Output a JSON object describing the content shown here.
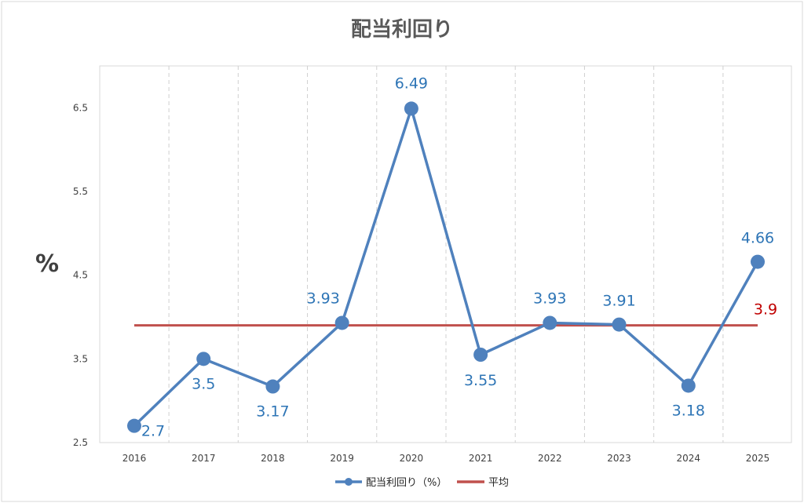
{
  "chart_data": {
    "type": "line",
    "title": "配当利回り",
    "ylabel": "%",
    "xlabel": "",
    "categories": [
      "2016",
      "2017",
      "2018",
      "2019",
      "2020",
      "2021",
      "2022",
      "2023",
      "2024",
      "2025"
    ],
    "yticks": [
      "2.5",
      "3.5",
      "4.5",
      "5.5",
      "6.5"
    ],
    "ylim": [
      2.5,
      7.0
    ],
    "grid": "vertical-dashed",
    "legend_position": "bottom",
    "series": [
      {
        "name": "配当利回り（%）",
        "color": "#4F81BD",
        "label_color": "#2E75B6",
        "values": [
          2.7,
          3.5,
          3.17,
          3.93,
          6.49,
          3.55,
          3.93,
          3.91,
          3.18,
          4.66
        ],
        "labels": [
          "2.7",
          "3.5",
          "3.17",
          "3.93",
          "6.49",
          "3.55",
          "3.93",
          "3.91",
          "3.18",
          "4.66"
        ]
      },
      {
        "name": "平均",
        "color": "#C0504D",
        "label_color": "#C00000",
        "values": [
          3.9,
          3.9,
          3.9,
          3.9,
          3.9,
          3.9,
          3.9,
          3.9,
          3.9,
          3.9
        ],
        "end_label": "3.9"
      }
    ]
  }
}
